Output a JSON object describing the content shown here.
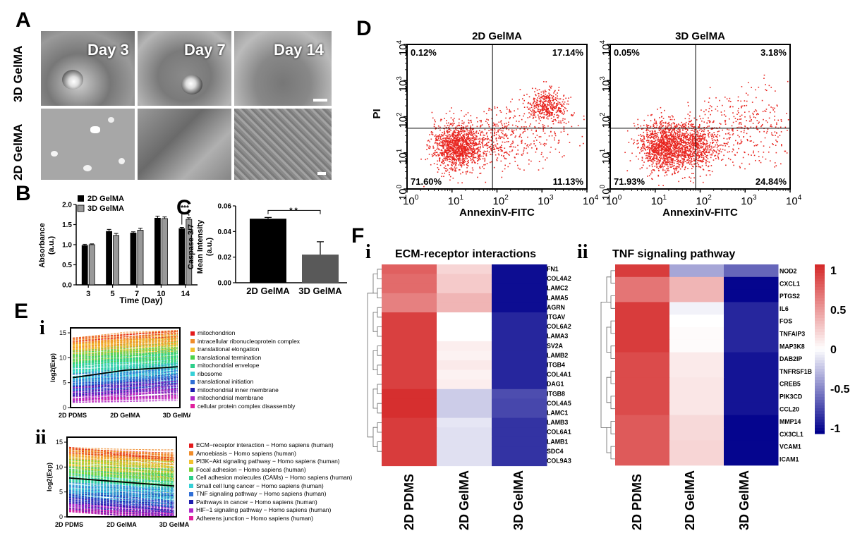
{
  "panels": {
    "A": "A",
    "B": "B",
    "C": "C",
    "D": "D",
    "E": "E",
    "F": "F",
    "E_i": "i",
    "E_ii": "ii",
    "F_i": "i",
    "F_ii": "ii"
  },
  "panelA": {
    "row_labels": [
      "3D GelMA",
      "2D GelMA"
    ],
    "col_labels": [
      "Day 3",
      "Day 7",
      "Day 14"
    ]
  },
  "panelB": {
    "ylabel_line1": "Absorbance",
    "ylabel_line2": "(a.u.)",
    "xlabel": "Time (Day)",
    "significance": "***",
    "chart_data": {
      "type": "bar",
      "categories": [
        "3",
        "5",
        "7",
        "10",
        "14"
      ],
      "series": [
        {
          "name": "2D GelMA",
          "values": [
            0.98,
            1.33,
            1.29,
            1.66,
            1.4
          ],
          "errors": [
            0.03,
            0.05,
            0.03,
            0.05,
            0.03
          ],
          "color": "#000000"
        },
        {
          "name": "3D GelMA",
          "values": [
            1.0,
            1.23,
            1.36,
            1.65,
            1.63
          ],
          "errors": [
            0.02,
            0.05,
            0.05,
            0.04,
            0.04
          ],
          "color": "#999999"
        }
      ],
      "yticks": [
        "0.0",
        "0.5",
        "1.0",
        "1.5",
        "2.0"
      ],
      "ylim": [
        0,
        2.0
      ]
    }
  },
  "panelC": {
    "ylabel_line1": "Caspase-3/7",
    "ylabel_line2": "Mean Intensity",
    "ylabel_line3": "(a.u.)",
    "significance": "* *",
    "chart_data": {
      "type": "bar",
      "categories": [
        "2D GelMA",
        "3D GelMA"
      ],
      "values": [
        0.05,
        0.022
      ],
      "errors": [
        0.001,
        0.01
      ],
      "colors": [
        "#000000",
        "#595959"
      ],
      "yticks": [
        "0.00",
        "0.02",
        "0.04",
        "0.06"
      ],
      "ylim": [
        0,
        0.06
      ]
    }
  },
  "panelD": {
    "plots": [
      {
        "title": "2D GelMA",
        "ylabel": "PI",
        "xlabel": "AnnexinV-FITC",
        "q_ul": "0.12%",
        "q_ur": "17.14%",
        "q_ll": "71.60%",
        "q_lr": "11.13%"
      },
      {
        "title": "3D GelMA",
        "ylabel": "",
        "xlabel": "AnnexinV-FITC",
        "q_ul": "0.05%",
        "q_ur": "3.18%",
        "q_ll": "71.93%",
        "q_lr": "24.84%"
      }
    ],
    "tick_base": "10",
    "tick_exps": [
      "0",
      "1",
      "2",
      "3",
      "4"
    ],
    "dot_color": "#e8251f"
  },
  "panelE": {
    "ylabel": "log2(Exp)",
    "xticks": [
      "2D PDMS",
      "2D GelMA",
      "3D GelMA"
    ],
    "plot_i": {
      "yticks": [
        "0",
        "5",
        "10",
        "15"
      ],
      "legend": [
        {
          "label": "mitochondrion",
          "color": "#e41a1c"
        },
        {
          "label": "intracellular ribonucleoprotein complex",
          "color": "#f08c2a"
        },
        {
          "label": "translational elongation",
          "color": "#f2c12e"
        },
        {
          "label": "translational termination",
          "color": "#4bd34b"
        },
        {
          "label": "mitochondrial envelope",
          "color": "#2ccf8a"
        },
        {
          "label": "ribosome",
          "color": "#36d0d6"
        },
        {
          "label": "translational initiation",
          "color": "#2f6fd6"
        },
        {
          "label": "mitochondrial inner membrane",
          "color": "#1d1dae"
        },
        {
          "label": "mitochondrial membrane",
          "color": "#b028c8"
        },
        {
          "label": "cellular protein complex disassembly",
          "color": "#e0209c"
        }
      ]
    },
    "plot_ii": {
      "yticks": [
        "0",
        "5",
        "10",
        "15"
      ],
      "legend": [
        {
          "label": "ECM−receptor interaction − Homo sapiens (human)",
          "color": "#e41a1c"
        },
        {
          "label": "Amoebiasis − Homo sapiens (human)",
          "color": "#f08c2a"
        },
        {
          "label": "PI3K−Akt signaling pathway − Homo sapiens (human)",
          "color": "#f2c12e"
        },
        {
          "label": "Focal adhesion − Homo sapiens (human)",
          "color": "#7bd132"
        },
        {
          "label": "Cell adhesion molecules (CAMs) − Homo sapiens (human)",
          "color": "#2ccf8a"
        },
        {
          "label": "Small cell lung cancer − Homo sapiens (human)",
          "color": "#36d0d6"
        },
        {
          "label": "TNF signaling pathway − Homo sapiens (human)",
          "color": "#2f6fd6"
        },
        {
          "label": "Pathways in cancer − Homo sapiens (human)",
          "color": "#1d1dae"
        },
        {
          "label": "HIF−1 signaling pathway − Homo sapiens (human)",
          "color": "#b028c8"
        },
        {
          "label": "Adherens junction − Homo sapiens (human)",
          "color": "#e0209c"
        }
      ]
    }
  },
  "panelF": {
    "columns": [
      "2D PDMS",
      "2D GelMA",
      "3D GelMA"
    ],
    "colorbar_ticks": [
      "1",
      "0.5",
      "0",
      "-0.5",
      "-1"
    ],
    "heatmap_i": {
      "title": "ECM-receptor interactions",
      "genes": [
        "FN1",
        "COL4A2",
        "LAMC2",
        "LAMA5",
        "AGRN",
        "ITGAV",
        "COL6A2",
        "LAMA3",
        "SV2A",
        "LAMB2",
        "ITGB4",
        "COL4A1",
        "DAG1",
        "ITGB8",
        "COL4A5",
        "LAMC1",
        "LAMB3",
        "COL6A1",
        "LAMB1",
        "SDC4",
        "COL9A3"
      ],
      "values": [
        [
          0.75,
          0.2,
          -0.95
        ],
        [
          0.7,
          0.25,
          -0.95
        ],
        [
          0.7,
          0.25,
          -0.95
        ],
        [
          0.6,
          0.35,
          -0.95
        ],
        [
          0.6,
          0.35,
          -0.95
        ],
        [
          0.9,
          0.0,
          -0.85
        ],
        [
          0.9,
          0.0,
          -0.85
        ],
        [
          0.9,
          0.0,
          -0.85
        ],
        [
          0.9,
          0.08,
          -0.85
        ],
        [
          0.9,
          0.06,
          -0.85
        ],
        [
          0.9,
          0.1,
          -0.85
        ],
        [
          0.9,
          0.06,
          -0.85
        ],
        [
          0.9,
          0.08,
          -0.85
        ],
        [
          0.98,
          -0.2,
          -0.7
        ],
        [
          0.98,
          -0.2,
          -0.72
        ],
        [
          0.98,
          -0.2,
          -0.72
        ],
        [
          0.92,
          -0.1,
          -0.8
        ],
        [
          0.92,
          -0.12,
          -0.8
        ],
        [
          0.92,
          -0.12,
          -0.8
        ],
        [
          0.92,
          -0.12,
          -0.8
        ],
        [
          0.92,
          -0.12,
          -0.8
        ]
      ]
    },
    "heatmap_ii": {
      "title": "TNF signaling pathway",
      "genes": [
        "NOD2",
        "CXCL1",
        "PTGS2",
        "IL6",
        "FOS",
        "TNFAIP3",
        "MAP3K8",
        "DAB2IP",
        "TNFRSF1B",
        "CREB5",
        "PIK3CD",
        "CCL20",
        "MMP14",
        "CX3CL1",
        "VCAM1",
        "ICAM1"
      ],
      "values": [
        [
          0.92,
          -0.35,
          -0.6
        ],
        [
          0.65,
          0.35,
          -0.98
        ],
        [
          0.65,
          0.35,
          -0.98
        ],
        [
          0.92,
          -0.05,
          -0.85
        ],
        [
          0.92,
          0.0,
          -0.85
        ],
        [
          0.92,
          0.02,
          -0.85
        ],
        [
          0.92,
          0.02,
          -0.85
        ],
        [
          0.85,
          0.1,
          -0.92
        ],
        [
          0.85,
          0.1,
          -0.92
        ],
        [
          0.85,
          0.12,
          -0.92
        ],
        [
          0.85,
          0.12,
          -0.92
        ],
        [
          0.85,
          0.12,
          -0.92
        ],
        [
          0.78,
          0.18,
          -0.98
        ],
        [
          0.78,
          0.18,
          -0.98
        ],
        [
          0.78,
          0.2,
          -0.98
        ],
        [
          0.78,
          0.2,
          -0.98
        ]
      ]
    }
  }
}
